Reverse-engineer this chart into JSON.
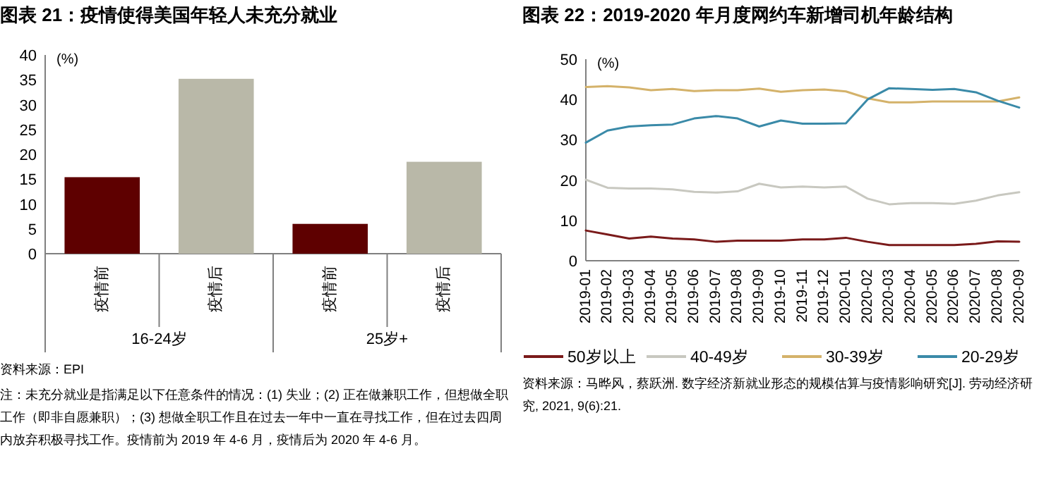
{
  "chart_data": [
    {
      "type": "bar",
      "title": "图表 21：疫情使得美国年轻人未充分就业",
      "ylabel": "(%)",
      "categories": [
        "16-24岁",
        "25岁+"
      ],
      "series": [
        {
          "name": "疫情前",
          "color": "#5e0000",
          "values": [
            15.4,
            6.0
          ]
        },
        {
          "name": "疫情后",
          "color": "#b9b8a8",
          "values": [
            35.2,
            18.5
          ]
        }
      ],
      "ylim": [
        0,
        40
      ],
      "yticks": [
        0,
        5,
        10,
        15,
        20,
        25,
        30,
        35,
        40
      ],
      "grid": false,
      "annotations": [
        "资料来源：EPI",
        "注：未充分就业是指满足以下任意条件的情况：(1) 失业；(2) 正在做兼职工作，但想做全职工作（即非自愿兼职）；(3) 想做全职工作且在过去一年中一直在寻找工作，但在过去四周内放弃积极寻找工作。疫情前为 2019 年 4-6 月，疫情后为 2020 年 4-6 月。"
      ]
    },
    {
      "type": "line",
      "title": "图表 22：2019-2020 年月度网约车新增司机年龄结构",
      "ylabel": "(%)",
      "categories": [
        "2019-01",
        "2019-02",
        "2019-03",
        "2019-04",
        "2019-05",
        "2019-06",
        "2019-07",
        "2019-08",
        "2019-09",
        "2019-10",
        "2019-11",
        "2019-12",
        "2020-01",
        "2020-02",
        "2020-03",
        "2020-04",
        "2020-05",
        "2020-06",
        "2020-07",
        "2020-08",
        "2020-09"
      ],
      "series": [
        {
          "name": "50岁以上",
          "color": "#7a1a1a",
          "values": [
            7.5,
            6.5,
            5.5,
            6.0,
            5.5,
            5.3,
            4.7,
            5.0,
            5.0,
            5.0,
            5.3,
            5.3,
            5.7,
            4.7,
            3.9,
            3.9,
            3.9,
            3.9,
            4.2,
            4.8,
            4.7
          ]
        },
        {
          "name": "40-49岁",
          "color": "#c8c8c0",
          "values": [
            20.1,
            18.1,
            17.9,
            17.9,
            17.7,
            17.1,
            16.9,
            17.2,
            19.1,
            18.2,
            18.4,
            18.2,
            18.4,
            15.4,
            14.0,
            14.3,
            14.3,
            14.1,
            14.9,
            16.2,
            17.0
          ]
        },
        {
          "name": "30-39岁",
          "color": "#d4b26a",
          "values": [
            43.1,
            43.3,
            43.0,
            42.3,
            42.6,
            42.1,
            42.3,
            42.3,
            42.7,
            41.9,
            42.3,
            42.5,
            42.0,
            40.3,
            39.3,
            39.3,
            39.5,
            39.5,
            39.5,
            39.5,
            40.5
          ]
        },
        {
          "name": "20-29岁",
          "color": "#3a8aa8",
          "values": [
            29.3,
            32.3,
            33.3,
            33.6,
            33.8,
            35.3,
            35.9,
            35.3,
            33.3,
            34.8,
            34.0,
            34.0,
            34.1,
            40.0,
            42.8,
            42.6,
            42.4,
            42.6,
            41.8,
            39.7,
            38.0
          ]
        }
      ],
      "ylim": [
        0,
        50
      ],
      "yticks": [
        0,
        10,
        20,
        30,
        40,
        50
      ],
      "grid": false,
      "legend": "bottom",
      "marker": "none",
      "line_style": "solid",
      "annotations": [
        "资料来源：马晔风，蔡跃洲. 数字经济新就业形态的规模估算与疫情影响研究[J]. 劳动经济研究, 2021, 9(6):21."
      ]
    }
  ]
}
